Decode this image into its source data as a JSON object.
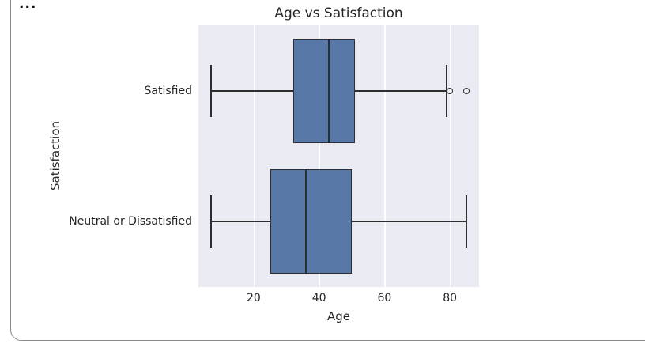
{
  "card": {
    "ellipsis_text": "..."
  },
  "chart_data": {
    "type": "boxplot",
    "orientation": "horizontal",
    "title": "Age vs Satisfaction",
    "xlabel": "Age",
    "ylabel": "Satisfaction",
    "categories": [
      "Satisfied",
      "Neutral or Dissatisfied"
    ],
    "series": [
      {
        "category": "Satisfied",
        "whisker_low": 7,
        "q1": 32,
        "median": 43,
        "q3": 51,
        "whisker_high": 79,
        "outliers": [
          80,
          85
        ]
      },
      {
        "category": "Neutral or Dissatisfied",
        "whisker_low": 7,
        "q1": 25,
        "median": 36,
        "q3": 50,
        "whisker_high": 85,
        "outliers": []
      }
    ],
    "x_ticks": [
      20,
      40,
      60,
      80
    ],
    "xlim": [
      3.1,
      88.9
    ],
    "grid": "vertical white gridlines",
    "legend_position": "none",
    "colors": {
      "box_fill": "#5878a8",
      "box_line": "#2d2d2d",
      "plot_background": "#eaeaf2",
      "gridline": "#ffffff",
      "text": "#262626"
    }
  }
}
